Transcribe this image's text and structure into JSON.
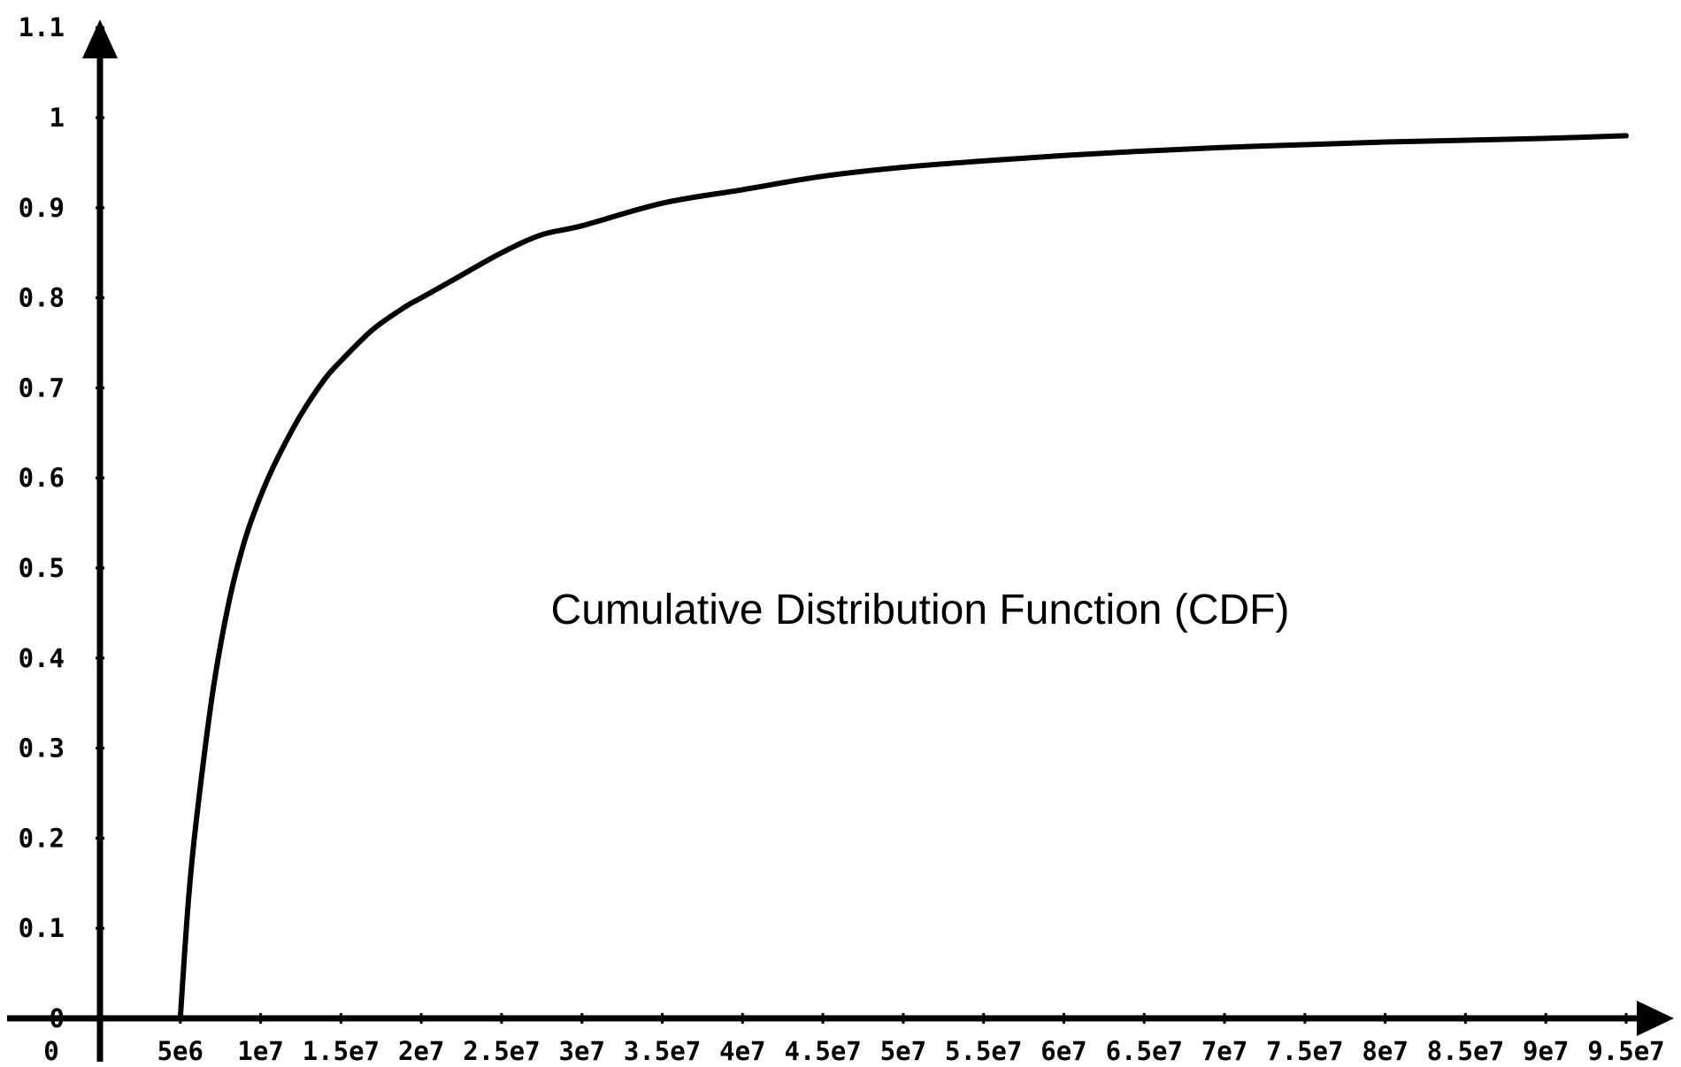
{
  "chart_data": {
    "type": "line",
    "title": "",
    "annotation": "Cumulative Distribution Function (CDF)",
    "xlabel": "",
    "ylabel": "",
    "xlim": [
      0,
      95000000
    ],
    "ylim": [
      0,
      1.1
    ],
    "grid": false,
    "x_tick_labels": [
      "0",
      "5e6",
      "1e7",
      "1.5e7",
      "2e7",
      "2.5e7",
      "3e7",
      "3.5e7",
      "4e7",
      "4.5e7",
      "5e7",
      "5.5e7",
      "6e7",
      "6.5e7",
      "7e7",
      "7.5e7",
      "8e7",
      "8.5e7",
      "9e7",
      "9.5e7"
    ],
    "x_tick_values": [
      0,
      5000000,
      10000000,
      15000000,
      20000000,
      25000000,
      30000000,
      35000000,
      40000000,
      45000000,
      50000000,
      55000000,
      60000000,
      65000000,
      70000000,
      75000000,
      80000000,
      85000000,
      90000000,
      95000000
    ],
    "y_tick_labels": [
      "0",
      "0.1",
      "0.2",
      "0.3",
      "0.4",
      "0.5",
      "0.6",
      "0.7",
      "0.8",
      "0.9",
      "1",
      "1.1"
    ],
    "y_tick_values": [
      0,
      0.1,
      0.2,
      0.3,
      0.4,
      0.5,
      0.6,
      0.7,
      0.8,
      0.9,
      1,
      1.1
    ],
    "series": [
      {
        "x": [
          5000000,
          5500000,
          6000000,
          7000000,
          8000000,
          9000000,
          10000000,
          11000000,
          12500000,
          14000000,
          15000000,
          17000000,
          19000000,
          20000000,
          22000000,
          25000000,
          27500000,
          30000000,
          35000000,
          40000000,
          45000000,
          50000000,
          55000000,
          60000000,
          65000000,
          70000000,
          75000000,
          80000000,
          85000000,
          90000000,
          95000000
        ],
        "y": [
          0.0,
          0.13,
          0.22,
          0.36,
          0.46,
          0.53,
          0.58,
          0.62,
          0.67,
          0.71,
          0.73,
          0.765,
          0.79,
          0.8,
          0.82,
          0.85,
          0.87,
          0.88,
          0.905,
          0.92,
          0.935,
          0.945,
          0.952,
          0.958,
          0.963,
          0.967,
          0.97,
          0.973,
          0.975,
          0.977,
          0.98
        ]
      }
    ]
  }
}
